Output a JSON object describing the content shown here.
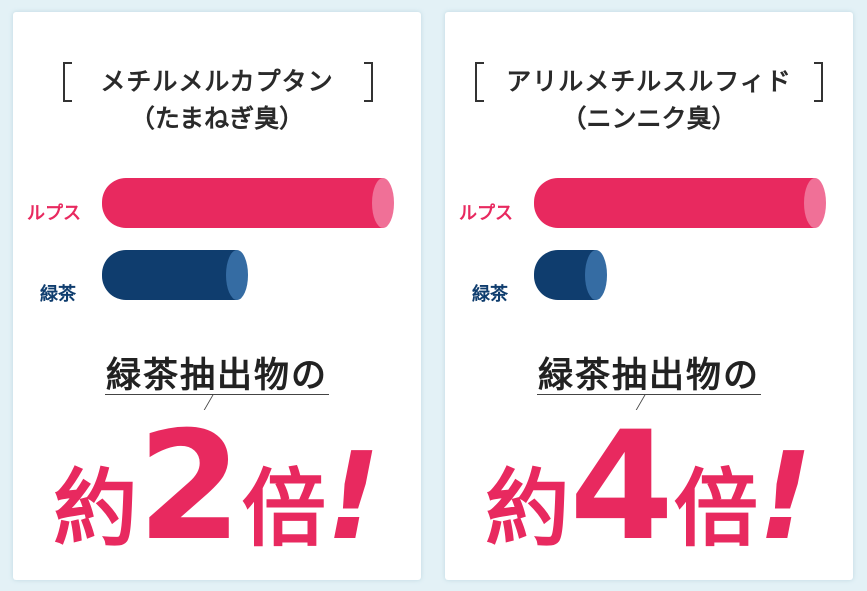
{
  "colors": {
    "lupus": "#e8295f",
    "lupus_cap": "#f07097",
    "green_tea": "#0f3d6e",
    "green_tea_cap": "#356ca3",
    "accent": "#e8295f",
    "background": "#e3f1f6"
  },
  "chart_data": [
    {
      "type": "bar",
      "orientation": "horizontal",
      "title": "メチルメルカプタン",
      "subtitle": "（たまねぎ臭）",
      "categories": [
        "ルプス",
        "緑茶"
      ],
      "values": [
        2,
        1
      ],
      "xlabel": "",
      "ylabel": "",
      "grid": false,
      "annotation": {
        "lead": "緑茶抽出物の",
        "prefix": "約",
        "number": "2",
        "suffix": "倍",
        "mark": "!"
      }
    },
    {
      "type": "bar",
      "orientation": "horizontal",
      "title": "アリルメチルスルフィド",
      "subtitle": "（ニンニク臭）",
      "categories": [
        "ルプス",
        "緑茶"
      ],
      "values": [
        4,
        1
      ],
      "xlabel": "",
      "ylabel": "",
      "grid": false,
      "annotation": {
        "lead": "緑茶抽出物の",
        "prefix": "約",
        "number": "4",
        "suffix": "倍",
        "mark": "!"
      }
    }
  ]
}
